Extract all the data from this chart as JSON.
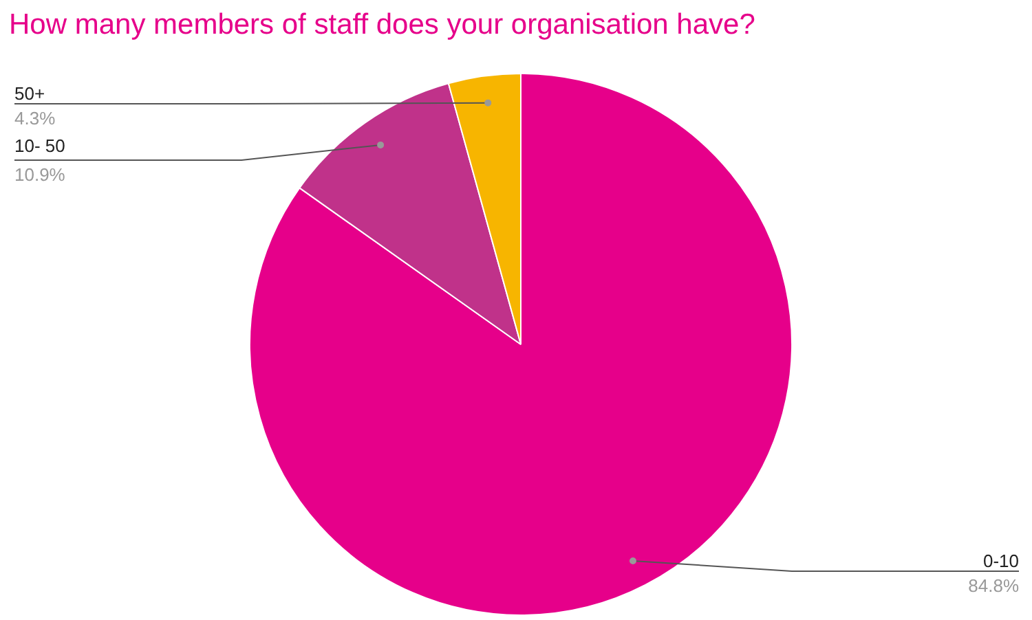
{
  "chart_data": {
    "type": "pie",
    "title": "How many members of staff does your organisation have?",
    "categories": [
      "0-10",
      "10- 50",
      "50+"
    ],
    "values": [
      84.8,
      10.9,
      4.3
    ],
    "colors": [
      "#e6008a",
      "#c0328a",
      "#f7b500"
    ],
    "value_labels": [
      "84.8%",
      "10.9%",
      "4.3%"
    ]
  }
}
